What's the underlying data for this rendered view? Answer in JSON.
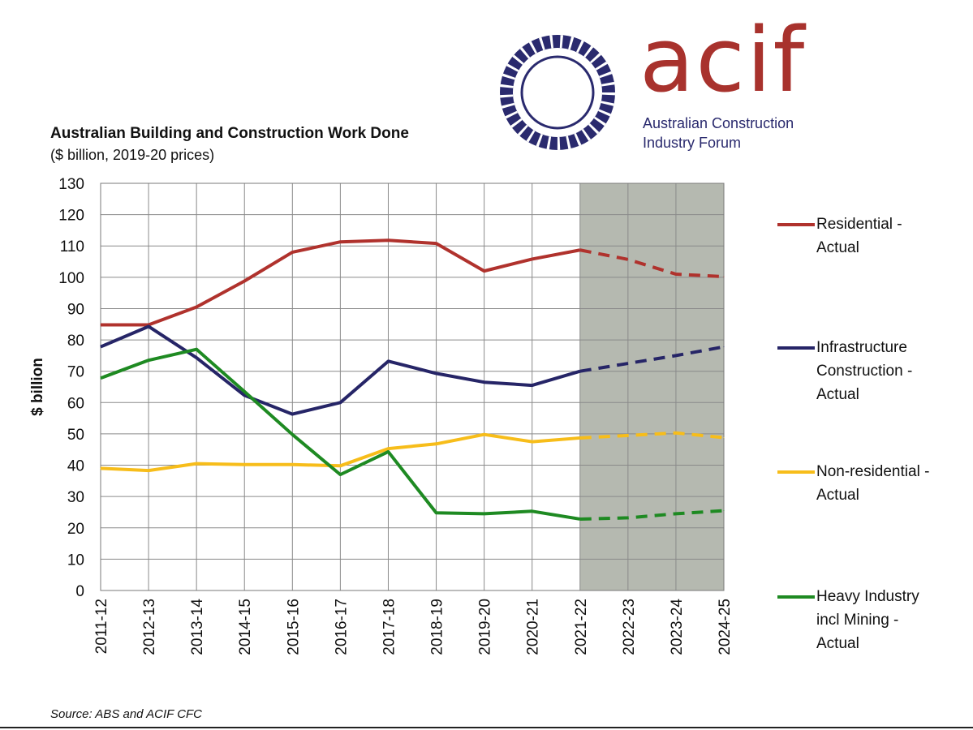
{
  "logo": {
    "word": "acif",
    "line1": "Australian Construction",
    "line2": "Industry Forum"
  },
  "source": "Source: ABS and ACIF CFC",
  "chart_data": {
    "type": "line",
    "title": "Australian Building and Construction Work Done",
    "subtitle": "($ billion, 2019-20 prices)",
    "ylabel": "$ billion",
    "xlabel": "",
    "ylim": [
      0,
      130
    ],
    "ytick_step": 10,
    "grid": true,
    "legend_position": "right",
    "forecast_shading": {
      "from": "2021-22",
      "to": "2024-25",
      "color": "#b5b9b0"
    },
    "categories": [
      "2011-12",
      "2012-13",
      "2013-14",
      "2014-15",
      "2015-16",
      "2016-17",
      "2017-18",
      "2018-19",
      "2019-20",
      "2020-21",
      "2021-22",
      "2022-23",
      "2023-24",
      "2024-25"
    ],
    "actual_until_index": 10,
    "series": [
      {
        "name": "Residential - Actual",
        "legend_lines": [
          "Residential -",
          "Actual"
        ],
        "color": "#b0322d",
        "values": [
          84.8,
          84.8,
          90.5,
          98.8,
          108.0,
          111.3,
          111.8,
          110.8,
          102.0,
          105.8,
          108.7,
          105.7,
          101.0,
          100.2
        ]
      },
      {
        "name": "Infrastructure Construction - Actual",
        "legend_lines": [
          "Infrastructure",
          "Construction -",
          "Actual"
        ],
        "color": "#262567",
        "values": [
          77.8,
          84.3,
          74.3,
          62.3,
          56.3,
          60.0,
          73.2,
          69.3,
          66.5,
          65.5,
          70.0,
          72.5,
          75.0,
          77.8
        ]
      },
      {
        "name": "Non-residential - Actual",
        "legend_lines": [
          "Non-residential -",
          "Actual"
        ],
        "color": "#f7bd1a",
        "values": [
          39.0,
          38.3,
          40.5,
          40.2,
          40.2,
          39.8,
          45.3,
          46.8,
          49.8,
          47.5,
          48.7,
          49.5,
          50.3,
          48.8
        ]
      },
      {
        "name": "Heavy Industry incl Mining - Actual",
        "legend_lines": [
          "Heavy Industry",
          "incl Mining -",
          "Actual"
        ],
        "color": "#1e8a22",
        "values": [
          67.8,
          73.5,
          77.0,
          63.5,
          49.8,
          37.0,
          44.3,
          24.8,
          24.5,
          25.3,
          22.8,
          23.2,
          24.5,
          25.5
        ]
      }
    ]
  }
}
